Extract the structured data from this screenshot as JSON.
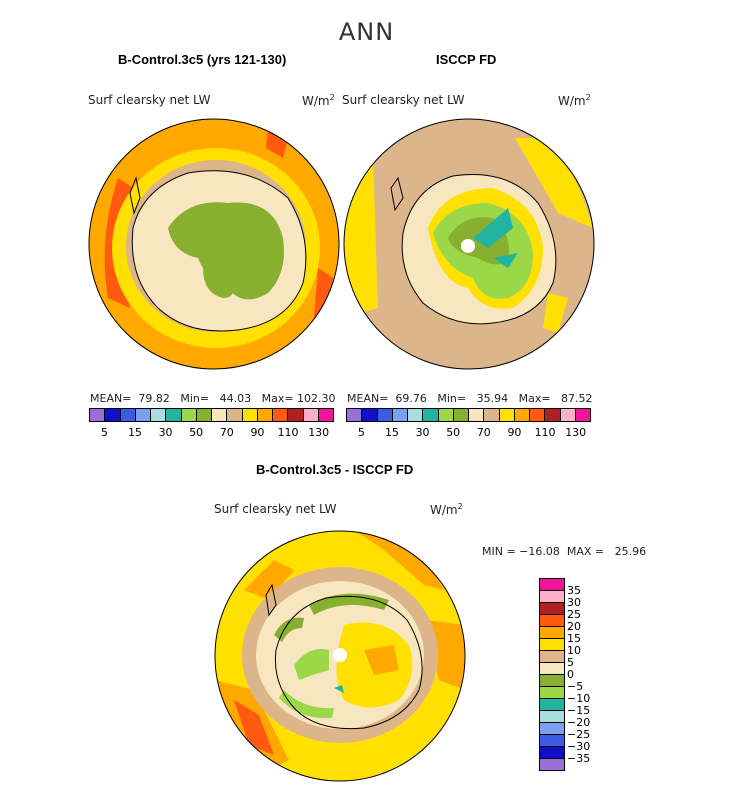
{
  "figure": {
    "title": "ANN"
  },
  "panels": {
    "left": {
      "title": "B-Control.3c5 (yrs 121-130)",
      "variable": "Surf clearsky net LW",
      "units": "W/m",
      "units_sup": "2",
      "stats": "MEAN=  79.82   Min=   44.03   Max= 102.30"
    },
    "right": {
      "title": "ISCCP FD",
      "variable": "Surf clearsky net LW",
      "units": "W/m",
      "units_sup": "2",
      "stats": "MEAN=  69.76   Min=   35.94   Max=   87.52"
    },
    "bottom": {
      "title": "B-Control.3c5 - ISCCP FD",
      "variable": "Surf clearsky net LW",
      "units": "W/m",
      "units_sup": "2",
      "stats": "MIN = −16.08  MAX =   25.96"
    }
  },
  "colorbar_top": {
    "colors": [
      "#9a6fd8",
      "#1010c8",
      "#3a5ce0",
      "#7aa0ee",
      "#a8dede",
      "#22b4a0",
      "#9ad84a",
      "#88b030",
      "#f7e6c0",
      "#dcb58a",
      "#ffe000",
      "#ffa800",
      "#ff5a10",
      "#b02020",
      "#ffb0c8",
      "#f0149a"
    ],
    "labels": [
      "5",
      "15",
      "30",
      "50",
      "70",
      "90",
      "110",
      "130"
    ]
  },
  "colorbar_diff": {
    "colors": [
      "#f0149a",
      "#ffb0c8",
      "#b02020",
      "#ff5a10",
      "#ffa800",
      "#ffe000",
      "#dcb58a",
      "#f7e6c0",
      "#88b030",
      "#9ad84a",
      "#22b4a0",
      "#a8dede",
      "#7aa0ee",
      "#3a5ce0",
      "#1010c8",
      "#9a6fd8"
    ],
    "labels": [
      "35",
      "30",
      "25",
      "20",
      "15",
      "10",
      "5",
      "0",
      "−5",
      "−10",
      "−15",
      "−20",
      "−25",
      "−30",
      "−35"
    ]
  },
  "map_colors": {
    "tan": "#dcb58a",
    "cream": "#f7e6c0",
    "yellow": "#ffe000",
    "orange": "#ffa800",
    "red_orange": "#ff5a10",
    "light_green": "#9ad84a",
    "dark_green": "#88b030",
    "teal": "#22b4a0",
    "pale_teal": "#a8dede"
  }
}
